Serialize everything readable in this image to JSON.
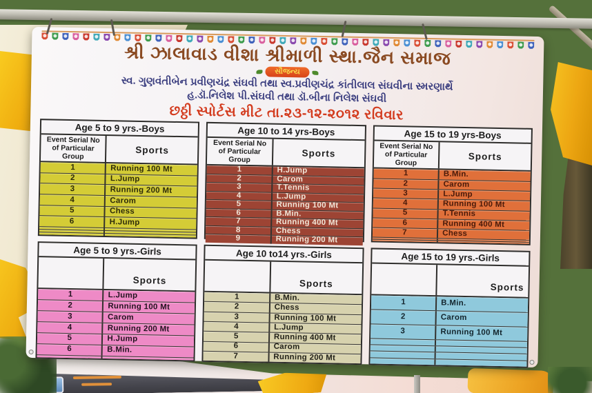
{
  "banner": {
    "title": "શ્રી ઝાલાવાડ વીશા શ્રીમાળી સ્થા.જૈન સમાજ",
    "courtesy_badge": "સૌજન્ય",
    "memorial_line": "સ્વ. ગુણવંતીબેન પ્રવીણચંદ્ર સંઘવી તથા સ્વ.પ્રવીણચંદ્ર કાંતીલાલ સંઘવીના સ્મરણાર્થે",
    "organizer_line": "હ.ડૉ.નિલેશ પી.સંઘવી તથા ડૉ.બીના નિલેશ સંઘવી",
    "event_line": "છઠ્ઠી સ્પોર્ટસ મીટ  તા.૨૩-૧૨-૨૦૧૨ રવિવાર",
    "colors": {
      "title_text": "#8a4a22",
      "memorial_text": "#3c3f80",
      "event_text": "#d33b1e",
      "badge_bg": "#e2551f",
      "badge_text": "#f7d84a",
      "table_border": "#2e2d2b"
    },
    "bunting_colors": [
      "#d94f35",
      "#3f9c4e",
      "#3f62bb",
      "#d9609f",
      "#c9392f",
      "#3fa9b8",
      "#8a49ae",
      "#e08a35",
      "#4a8fd4"
    ],
    "tables": [
      {
        "title": "Age 5 to 9 yrs.-Boys",
        "col1_header": "Event Serial No of Particular Group",
        "col2_header": "Sports",
        "sports_align": "center",
        "row_bg": "#d4cc36",
        "row_text": "#2e2c0a",
        "total_rows": 9,
        "rows": [
          {
            "no": "1",
            "sport": "Running 100 Mt"
          },
          {
            "no": "2",
            "sport": "L.Jump"
          },
          {
            "no": "3",
            "sport": "Running 200 Mt"
          },
          {
            "no": "4",
            "sport": "Carom"
          },
          {
            "no": "5",
            "sport": "Chess"
          },
          {
            "no": "6",
            "sport": "H.Jump"
          }
        ]
      },
      {
        "title": "Age 10 to 14 yrs-Boys",
        "col1_header": "Event Serial No of Particular Group",
        "col2_header": "Sports",
        "sports_align": "center",
        "row_bg": "#9d4434",
        "row_text": "#f2e6d8",
        "total_rows": 9,
        "rows": [
          {
            "no": "1",
            "sport": "H.Jump"
          },
          {
            "no": "2",
            "sport": "Carom"
          },
          {
            "no": "3",
            "sport": "T.Tennis"
          },
          {
            "no": "4",
            "sport": "L.Jump"
          },
          {
            "no": "5",
            "sport": "Running 100 Mt"
          },
          {
            "no": "6",
            "sport": "B.Min."
          },
          {
            "no": "7",
            "sport": "Running 400 Mt"
          },
          {
            "no": "8",
            "sport": "Chess"
          },
          {
            "no": "9",
            "sport": "Running 200 Mt"
          }
        ]
      },
      {
        "title": "Age 15 to 19 yrs-Boys",
        "col1_header": "Event Serial No of Particular Group",
        "col2_header": "Sports",
        "sports_align": "center",
        "row_bg": "#e0703a",
        "row_text": "#4a1a0a",
        "total_rows": 9,
        "rows": [
          {
            "no": "1",
            "sport": "B.Min."
          },
          {
            "no": "2",
            "sport": "Carom"
          },
          {
            "no": "3",
            "sport": "L.Jump"
          },
          {
            "no": "4",
            "sport": "Running 100 Mt"
          },
          {
            "no": "5",
            "sport": "T.Tennis"
          },
          {
            "no": "6",
            "sport": "Running 400 Mt"
          },
          {
            "no": "7",
            "sport": "Chess"
          }
        ]
      },
      {
        "title": "Age 5 to 9 yrs.-Girls",
        "col1_header": "",
        "col2_header": "Sports",
        "sports_align": "center",
        "row_bg": "#ee8ac6",
        "row_text": "#231420",
        "total_rows": 7,
        "rows": [
          {
            "no": "1",
            "sport": "L.Jump"
          },
          {
            "no": "2",
            "sport": "Running 100 Mt"
          },
          {
            "no": "3",
            "sport": "Carom"
          },
          {
            "no": "4",
            "sport": "Running 200 Mt"
          },
          {
            "no": "5",
            "sport": "H.Jump"
          },
          {
            "no": "6",
            "sport": "B.Min."
          }
        ]
      },
      {
        "title": "Age 10 to14 yrs.-Girls",
        "col1_header": "",
        "col2_header": "Sports",
        "sports_align": "center",
        "row_bg": "#d7d2ae",
        "row_text": "#23221a",
        "total_rows": 7,
        "rows": [
          {
            "no": "1",
            "sport": "B.Min."
          },
          {
            "no": "2",
            "sport": "Chess"
          },
          {
            "no": "3",
            "sport": "Running 100 Mt"
          },
          {
            "no": "4",
            "sport": "L.Jump"
          },
          {
            "no": "5",
            "sport": "Running 400 Mt"
          },
          {
            "no": "6",
            "sport": "Carom"
          },
          {
            "no": "7",
            "sport": "Running 200 Mt"
          }
        ]
      },
      {
        "title": "Age 15 to 19 yrs.-Girls",
        "col1_header": "",
        "col2_header": "Sports",
        "sports_align": "right",
        "row_bg": "#8fc9dc",
        "row_text": "#14262e",
        "total_rows": 7,
        "rows": [
          {
            "no": "1",
            "sport": "B.Min."
          },
          {
            "no": "2",
            "sport": "Carom"
          },
          {
            "no": "3",
            "sport": "Running 100 Mt"
          }
        ]
      }
    ]
  }
}
